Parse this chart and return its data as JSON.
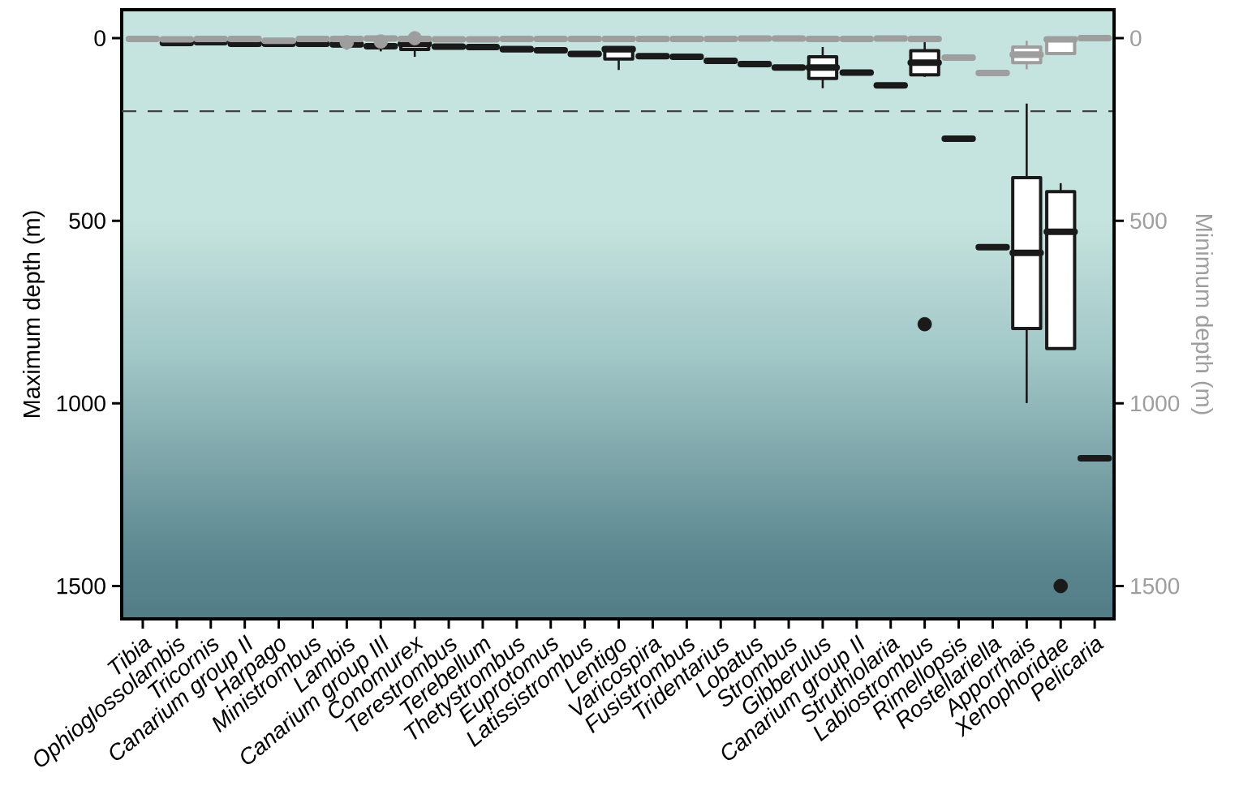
{
  "chart_data": {
    "type": "box",
    "categories": [
      "Tibia",
      "Ophioglossolambis",
      "Tricornis",
      "Canarium group II",
      "Harpago",
      "Ministrombus",
      "Lambis",
      "Canarium group III",
      "Conomurex",
      "Terestrombus",
      "Terebellum",
      "Thetystrombus",
      "Euprotomus",
      "Latissistrombus",
      "Lentigo",
      "Varicospira",
      "Fusistrombus",
      "Tridentarius",
      "Lobatus",
      "Strombus",
      "Gibberulus",
      "Canarium group II",
      "Struthiolaria",
      "Labiostrombus",
      "Rimellopsis",
      "Rostellariella",
      "Apporrhais",
      "Xenophoridae",
      "Pelicaria"
    ],
    "ylabel": "Maximum depth (m)",
    "y2label": "Minimum depth (m)",
    "ylim": [
      1590,
      -78
    ],
    "yticks": [
      0,
      500,
      1000,
      1500
    ],
    "y2lim": [
      1590,
      -78
    ],
    "y2ticks": [
      0,
      500,
      1000,
      1500
    ],
    "ref_lines": [
      {
        "axis": "y",
        "value": 200,
        "color": "#404040",
        "line_style": "dashed"
      }
    ],
    "series": [
      {
        "color": "#1a1a1a",
        "axis": "y",
        "boxes": [
          null,
          {
            "low": 13,
            "q1": 13,
            "median": 13,
            "q3": 13,
            "high": 13
          },
          {
            "low": 11,
            "q1": 11,
            "median": 11,
            "q3": 11,
            "high": 11
          },
          {
            "low": 15,
            "q1": 15,
            "median": 15,
            "q3": 15,
            "high": 15
          },
          {
            "low": 15,
            "q1": 15,
            "median": 15,
            "q3": 15,
            "high": 15
          },
          {
            "low": 15,
            "q1": 15,
            "median": 15,
            "q3": 15,
            "high": 15
          },
          {
            "low": 15,
            "q1": 15,
            "median": 17,
            "q3": 20,
            "high": 31
          },
          {
            "low": 20,
            "q1": 20,
            "median": 22,
            "q3": 25,
            "high": 36
          },
          {
            "low": 14,
            "q1": 14,
            "median": 16,
            "q3": 31,
            "high": 51
          },
          {
            "low": 23,
            "q1": 23,
            "median": 23,
            "q3": 23,
            "high": 23
          },
          {
            "low": 24,
            "q1": 24,
            "median": 24,
            "q3": 24,
            "high": 24
          },
          {
            "low": 30,
            "q1": 30,
            "median": 30,
            "q3": 30,
            "high": 30
          },
          {
            "low": 33,
            "q1": 33,
            "median": 33,
            "q3": 33,
            "high": 33
          },
          {
            "low": 43,
            "q1": 43,
            "median": 43,
            "q3": 43,
            "high": 43
          },
          {
            "low": 27,
            "q1": 27,
            "median": 30,
            "q3": 57,
            "high": 87
          },
          {
            "low": 49,
            "q1": 49,
            "median": 49,
            "q3": 49,
            "high": 49
          },
          {
            "low": 51,
            "q1": 51,
            "median": 51,
            "q3": 51,
            "high": 51
          },
          {
            "low": 62,
            "q1": 62,
            "median": 62,
            "q3": 62,
            "high": 62
          },
          {
            "low": 71,
            "q1": 71,
            "median": 71,
            "q3": 71,
            "high": 71
          },
          {
            "low": 80,
            "q1": 80,
            "median": 80,
            "q3": 80,
            "high": 80
          },
          {
            "low": 24,
            "q1": 51,
            "median": 80,
            "q3": 110,
            "high": 137
          },
          {
            "low": 94,
            "q1": 94,
            "median": 94,
            "q3": 94,
            "high": 94
          },
          {
            "low": 129,
            "q1": 129,
            "median": 129,
            "q3": 129,
            "high": 129
          },
          {
            "low": 11,
            "q1": 34,
            "median": 67,
            "q3": 100,
            "high": 106,
            "outliers": [
              783
            ]
          },
          {
            "low": 275,
            "q1": 275,
            "median": 275,
            "q3": 275,
            "high": 275
          },
          {
            "low": 572,
            "q1": 572,
            "median": 572,
            "q3": 572,
            "high": 572
          },
          {
            "low": 179,
            "q1": 382,
            "median": 588,
            "q3": 795,
            "high": 999
          },
          {
            "low": 397,
            "q1": 420,
            "median": 530,
            "q3": 850,
            "high": 850,
            "outliers": [
              1500
            ]
          },
          {
            "low": 1150,
            "q1": 1150,
            "median": 1150,
            "q3": 1150,
            "high": 1150
          }
        ]
      },
      {
        "color": "#9e9e9e",
        "axis": "y2",
        "boxes": [
          {
            "low": 2,
            "q1": 2,
            "median": 2,
            "q3": 2,
            "high": 2
          },
          {
            "low": 3,
            "q1": 3,
            "median": 3,
            "q3": 3,
            "high": 3
          },
          {
            "low": 2,
            "q1": 2,
            "median": 2,
            "q3": 2,
            "high": 2
          },
          {
            "low": 2,
            "q1": 2,
            "median": 2,
            "q3": 2,
            "high": 2
          },
          {
            "low": 7,
            "q1": 7,
            "median": 7,
            "q3": 7,
            "high": 7
          },
          {
            "low": 2,
            "q1": 2,
            "median": 2,
            "q3": 2,
            "high": 2
          },
          {
            "low": 2,
            "q1": 2,
            "median": 2,
            "q3": 2,
            "high": 2,
            "outliers": [
              11
            ]
          },
          {
            "low": 1,
            "q1": 1,
            "median": 1,
            "q3": 1,
            "high": 1,
            "outliers": [
              9
            ]
          },
          {
            "low": 2,
            "q1": 2,
            "median": 2,
            "q3": 2,
            "high": 2,
            "outliers": [
              0
            ]
          },
          {
            "low": 3,
            "q1": 3,
            "median": 3,
            "q3": 3,
            "high": 3
          },
          {
            "low": 3,
            "q1": 3,
            "median": 3,
            "q3": 3,
            "high": 3
          },
          {
            "low": 2,
            "q1": 2,
            "median": 2,
            "q3": 2,
            "high": 2
          },
          {
            "low": 2,
            "q1": 2,
            "median": 2,
            "q3": 2,
            "high": 2
          },
          {
            "low": 2,
            "q1": 2,
            "median": 2,
            "q3": 2,
            "high": 2
          },
          {
            "low": 2,
            "q1": 2,
            "median": 2,
            "q3": 2,
            "high": 2
          },
          {
            "low": 2,
            "q1": 2,
            "median": 2,
            "q3": 2,
            "high": 2
          },
          {
            "low": 2,
            "q1": 2,
            "median": 2,
            "q3": 2,
            "high": 2
          },
          {
            "low": 2,
            "q1": 2,
            "median": 2,
            "q3": 2,
            "high": 2
          },
          {
            "low": 1,
            "q1": 1,
            "median": 1,
            "q3": 1,
            "high": 1
          },
          {
            "low": 1,
            "q1": 1,
            "median": 1,
            "q3": 1,
            "high": 1
          },
          {
            "low": 2,
            "q1": 2,
            "median": 2,
            "q3": 2,
            "high": 2
          },
          {
            "low": 2,
            "q1": 2,
            "median": 2,
            "q3": 2,
            "high": 2
          },
          {
            "low": 1,
            "q1": 1,
            "median": 1,
            "q3": 1,
            "high": 1
          },
          {
            "low": 2,
            "q1": 2,
            "median": 2,
            "q3": 2,
            "high": 2
          },
          {
            "low": 53,
            "q1": 53,
            "median": 53,
            "q3": 53,
            "high": 53
          },
          {
            "low": 95,
            "q1": 95,
            "median": 95,
            "q3": 95,
            "high": 95
          },
          {
            "low": 7,
            "q1": 24,
            "median": 45,
            "q3": 67,
            "high": 85
          },
          {
            "low": 0,
            "q1": 0,
            "median": 3,
            "q3": 42,
            "high": 42
          },
          {
            "low": 0,
            "q1": 0,
            "median": 0,
            "q3": 0,
            "high": 0
          }
        ]
      }
    ]
  }
}
